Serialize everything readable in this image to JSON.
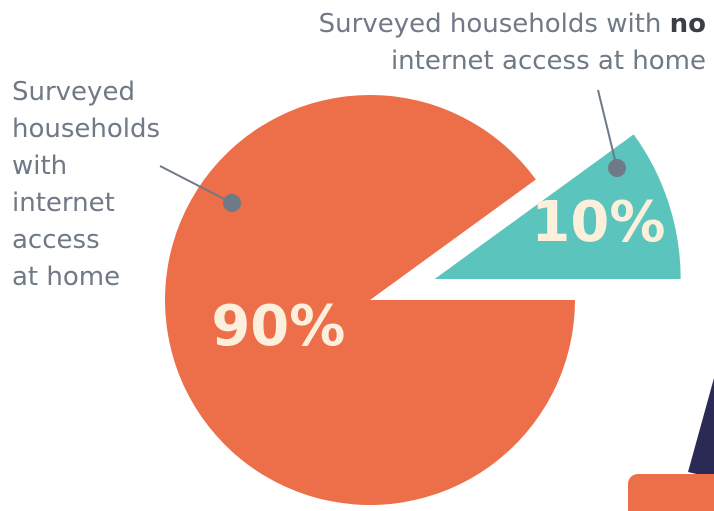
{
  "chart_data": {
    "type": "pie",
    "categories": [
      "Surveyed households with internet access at home",
      "Surveyed households with no internet access at home"
    ],
    "emphasis": [
      null,
      "no"
    ],
    "values": [
      90,
      10
    ],
    "value_labels": [
      "90%",
      "10%"
    ],
    "colors": [
      "#ec6f4a",
      "#5bc4bd"
    ],
    "explode": [
      false,
      true
    ]
  }
}
